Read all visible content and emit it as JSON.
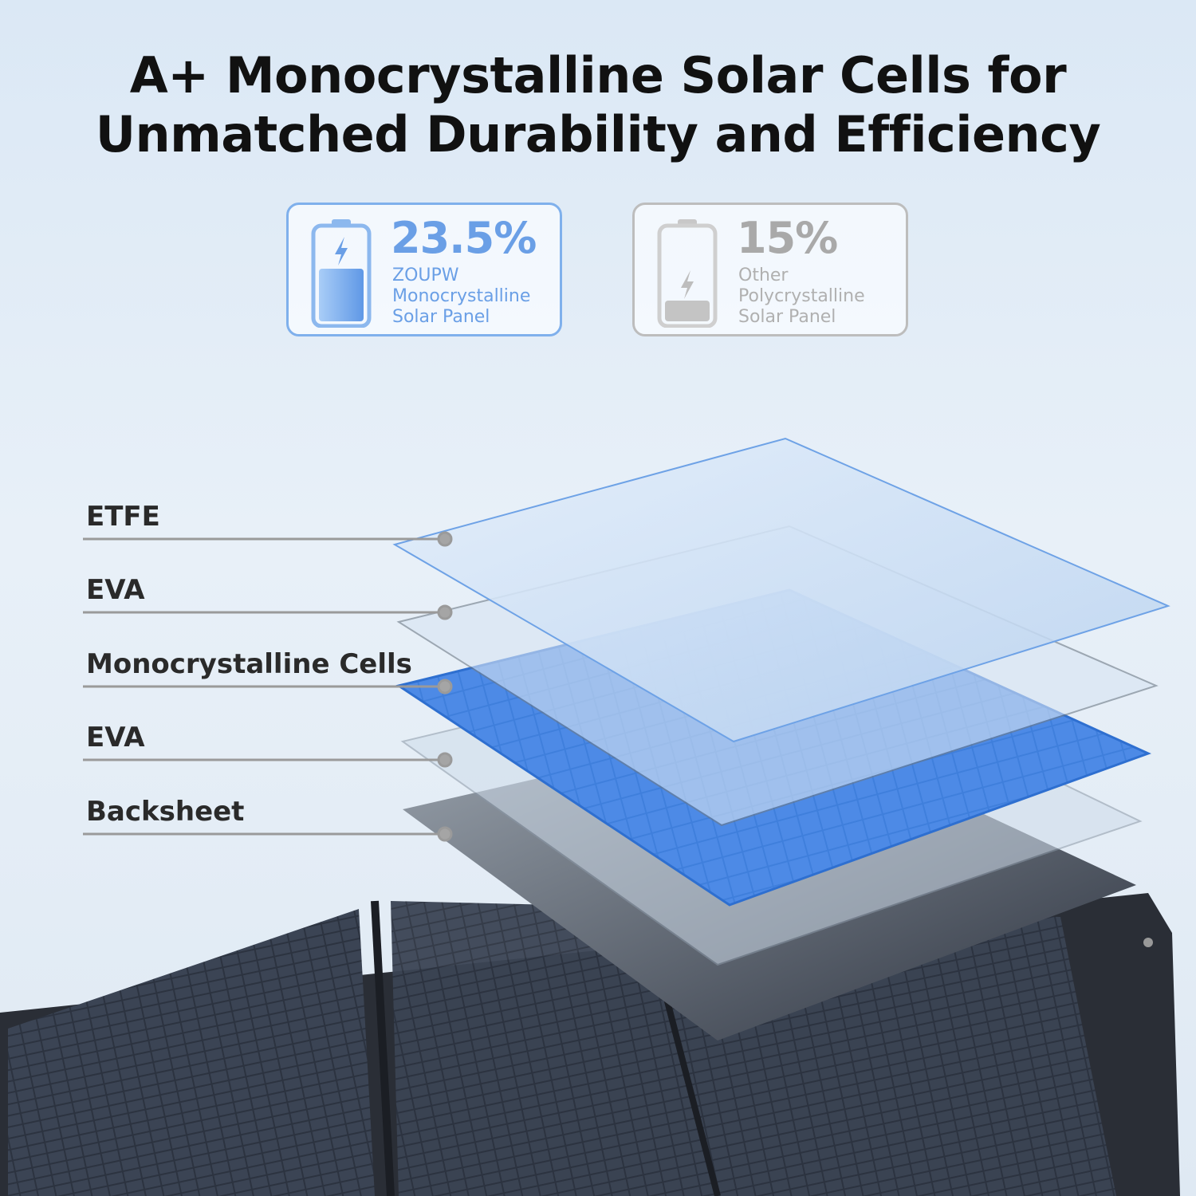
{
  "header": {
    "title_line1": "A+ Monocrystalline Solar Cells for",
    "title_line2": "Unmatched Durability and Efficiency"
  },
  "comparison": [
    {
      "value": "23.5%",
      "line1": "ZOUPW",
      "line2": "Monocrystalline",
      "line3": "Solar Panel",
      "color": "#6a9fe6",
      "icon": "battery-charging-icon"
    },
    {
      "value": "15%",
      "line1": "Other",
      "line2": "Polycrystalline",
      "line3": "Solar Panel",
      "color": "#a9a9a9",
      "icon": "battery-low-icon"
    }
  ],
  "layers": [
    "ETFE",
    "EVA",
    "Monocrystalline Cells",
    "EVA",
    "Backsheet"
  ]
}
